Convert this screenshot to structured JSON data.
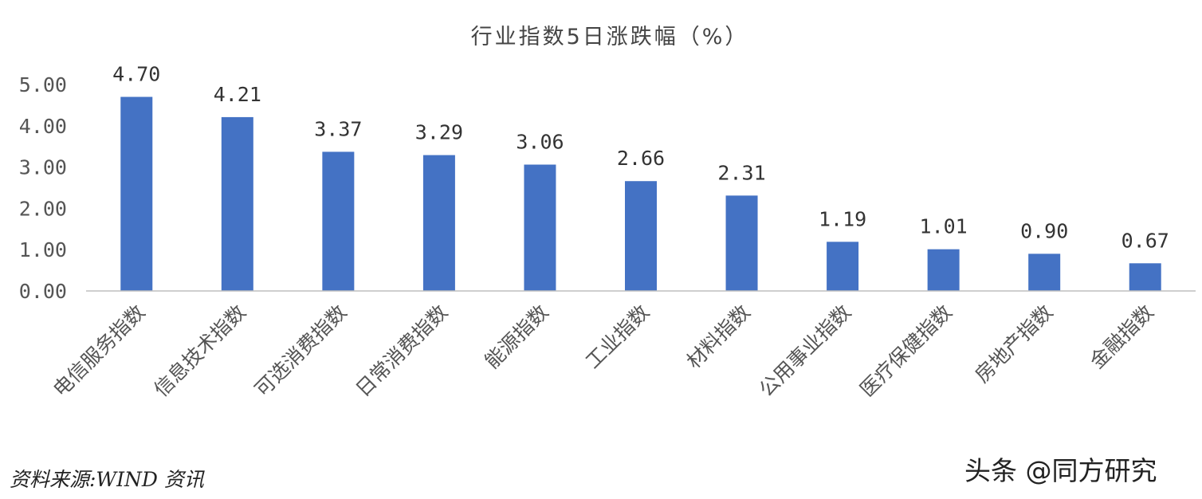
{
  "chart_data": {
    "type": "bar",
    "title": "行业指数5日涨跌幅（%）",
    "categories": [
      "电信服务指数",
      "信息技术指数",
      "可选消费指数",
      "日常消费指数",
      "能源指数",
      "工业指数",
      "材料指数",
      "公用事业指数",
      "医疗保健指数",
      "房地产指数",
      "金融指数"
    ],
    "values": [
      4.7,
      4.21,
      3.37,
      3.29,
      3.06,
      2.66,
      2.31,
      1.19,
      1.01,
      0.9,
      0.67
    ],
    "value_labels": [
      "4.70",
      "4.21",
      "3.37",
      "3.29",
      "3.06",
      "2.66",
      "2.31",
      "1.19",
      "1.01",
      "0.90",
      "0.67"
    ],
    "yticks": [
      "0.00",
      "1.00",
      "2.00",
      "3.00",
      "4.00",
      "5.00"
    ],
    "ylim": [
      0,
      5
    ],
    "xlabel": "",
    "ylabel": "",
    "grid": false,
    "legend": "none",
    "bar_color": "#4472C4"
  },
  "source_note": "资料来源:WIND 资讯",
  "watermark": "头条 @同方研究"
}
